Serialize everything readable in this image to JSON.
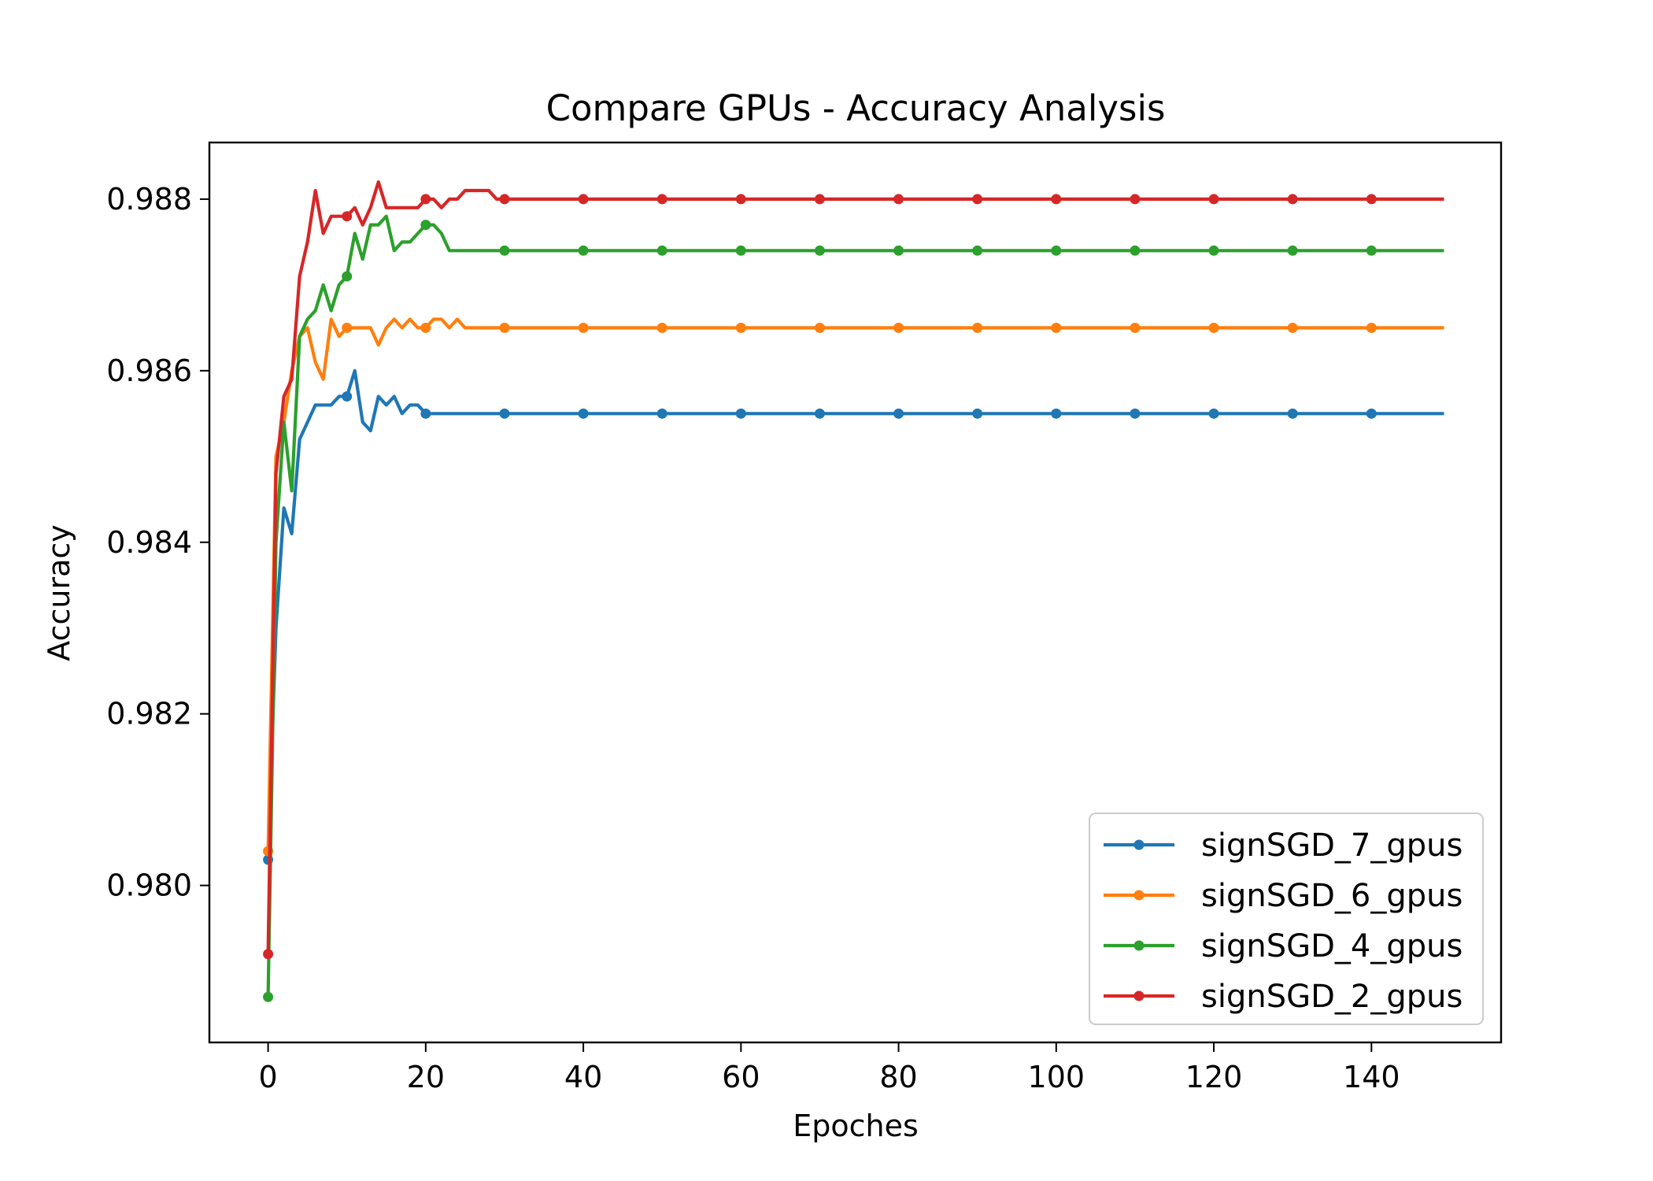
{
  "chart_data": {
    "type": "line",
    "title": "Compare GPUs - Accuracy Analysis",
    "xlabel": "Epoches",
    "ylabel": "Accuracy",
    "xlim": [
      -7.45,
      156.45
    ],
    "ylim": [
      0.97817,
      0.98866
    ],
    "xticks": [
      0,
      20,
      40,
      60,
      80,
      100,
      120,
      140
    ],
    "yticks": [
      0.98,
      0.982,
      0.984,
      0.986,
      0.988
    ],
    "ytick_labels": [
      "0.980",
      "0.982",
      "0.984",
      "0.986",
      "0.988"
    ],
    "grid": false,
    "legend_position": "lower-right",
    "marker_every": 10,
    "series": [
      {
        "name": "signSGD_7_gpus",
        "color": "#1f77b4",
        "tail_value": 0.9855,
        "values": [
          0.9803,
          0.983,
          0.9844,
          0.9841,
          0.9852,
          0.9854,
          0.9856,
          0.9856,
          0.9856,
          0.9857,
          0.9857,
          0.986,
          0.9854,
          0.9853,
          0.9857,
          0.9856,
          0.9857,
          0.9855,
          0.9856,
          0.9856,
          0.9855,
          0.9855,
          0.9855,
          0.9855,
          0.9855
        ]
      },
      {
        "name": "signSGD_6_gpus",
        "color": "#ff7f0e",
        "tail_value": 0.9865,
        "values": [
          0.9804,
          0.985,
          0.9854,
          0.986,
          0.9864,
          0.9865,
          0.9861,
          0.9859,
          0.9866,
          0.9864,
          0.9865,
          0.9865,
          0.9865,
          0.9865,
          0.9863,
          0.9865,
          0.9866,
          0.9865,
          0.9866,
          0.9865,
          0.9865,
          0.9866,
          0.9866,
          0.9865,
          0.9866,
          0.9865
        ]
      },
      {
        "name": "signSGD_4_gpus",
        "color": "#2ca02c",
        "tail_value": 0.9874,
        "values": [
          0.9787,
          0.984,
          0.9854,
          0.9846,
          0.9864,
          0.9866,
          0.9867,
          0.987,
          0.9867,
          0.987,
          0.9871,
          0.9876,
          0.9873,
          0.9877,
          0.9877,
          0.9878,
          0.9874,
          0.9875,
          0.9875,
          0.9876,
          0.9877,
          0.9877,
          0.9876,
          0.9874,
          0.9874
        ]
      },
      {
        "name": "signSGD_2_gpus",
        "color": "#d62728",
        "tail_value": 0.988,
        "values": [
          0.9792,
          0.9848,
          0.9857,
          0.9859,
          0.9871,
          0.9875,
          0.9881,
          0.9876,
          0.9878,
          0.9878,
          0.9878,
          0.9879,
          0.9877,
          0.9879,
          0.9882,
          0.9879,
          0.9879,
          0.9879,
          0.9879,
          0.9879,
          0.988,
          0.988,
          0.9879,
          0.988,
          0.988,
          0.9881,
          0.9881,
          0.9881,
          0.9881,
          0.988
        ]
      }
    ],
    "n_epochs": 150
  }
}
